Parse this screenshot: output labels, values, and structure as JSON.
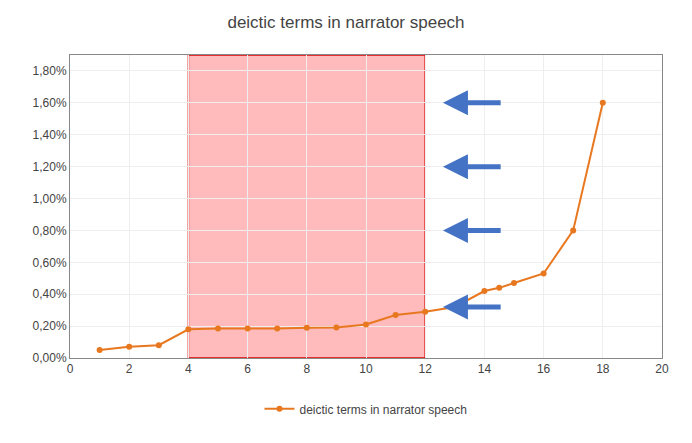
{
  "chart_data": {
    "type": "line",
    "title": "deictic terms in narrator speech",
    "x": [
      1,
      2,
      3,
      4,
      5,
      6,
      7,
      8,
      9,
      10,
      11,
      12,
      13,
      14,
      14.5,
      15,
      16,
      17,
      18
    ],
    "series": [
      {
        "name": "deictic terms in narrator speech",
        "color": "#E87820",
        "marker": "circle",
        "line_style": "solid",
        "values": [
          0.0005,
          0.0007,
          0.0008,
          0.0018,
          0.00185,
          0.00185,
          0.00185,
          0.0019,
          0.00192,
          0.0021,
          0.0027,
          0.0029,
          0.0032,
          0.0042,
          0.0044,
          0.0047,
          0.0053,
          0.008,
          0.016
        ]
      }
    ],
    "xlim": [
      0,
      20
    ],
    "xticks": [
      0,
      2,
      4,
      6,
      8,
      10,
      12,
      14,
      16,
      18,
      20
    ],
    "ylim": [
      0,
      0.019
    ],
    "yticks": [
      {
        "value": 0,
        "label": "0,00%"
      },
      {
        "value": 0.002,
        "label": "0,20%"
      },
      {
        "value": 0.004,
        "label": "0,40%"
      },
      {
        "value": 0.006,
        "label": "0,60%"
      },
      {
        "value": 0.008,
        "label": "0,80%"
      },
      {
        "value": 0.01,
        "label": "1,00%"
      },
      {
        "value": 0.012,
        "label": "1,20%"
      },
      {
        "value": 0.014,
        "label": "1,40%"
      },
      {
        "value": 0.016,
        "label": "1,60%"
      },
      {
        "value": 0.018,
        "label": "1,80%"
      }
    ],
    "grid": true,
    "legend": "bottom",
    "highlight": {
      "x": [
        4,
        12
      ],
      "y": [
        0,
        0.019
      ],
      "color": "#DD0000",
      "fill": "#FFBBBB"
    },
    "arrows": {
      "y": [
        0.016,
        0.012,
        0.008,
        0.0032
      ],
      "x_from": 14.6,
      "x_to": 12.6,
      "color": "#4472C4"
    }
  }
}
